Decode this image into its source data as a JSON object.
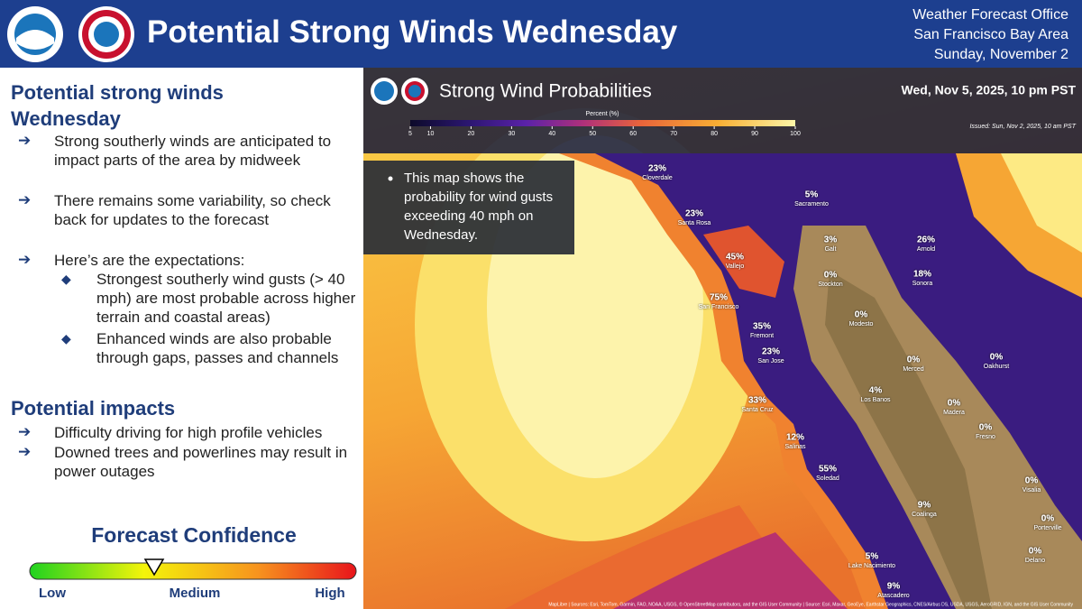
{
  "header": {
    "title": "Potential Strong Winds Wednesday",
    "office": [
      "Weather Forecast Office",
      "San Francisco Bay Area",
      "Sunday, November 2"
    ]
  },
  "summary": {
    "heading": "Potential strong winds Wednesday",
    "bullets": [
      "Strong southerly winds are anticipated to impact parts of the area by midweek",
      "There remains some variability, so check back for updates to the forecast",
      "Here’s are the expectations:"
    ],
    "sub_bullets": [
      "Strongest southerly wind gusts (> 40 mph) are most probable across higher terrain and coastal areas)",
      "Enhanced winds are also probable through gaps, passes and channels"
    ]
  },
  "impacts": {
    "heading": "Potential impacts",
    "bullets": [
      "Difficulty driving for high profile vehicles",
      "Downed trees and powerlines may result in power outages"
    ]
  },
  "confidence": {
    "title": "Forecast Confidence",
    "labels": [
      "Low",
      "Medium",
      "High"
    ]
  },
  "map": {
    "title": "Strong Wind Probabilities",
    "valid": "Wed, Nov 5, 2025, 10 pm PST",
    "legend_title": "Percent (%)",
    "legend_ticks": [
      5,
      10,
      20,
      30,
      40,
      50,
      60,
      70,
      80,
      90,
      100
    ],
    "issued": "Issued: Sun, Nov 2, 2025, 10 am PST",
    "note": "This map shows the probability for wind gusts exceeding 40 mph on Wednesday.",
    "cities": [
      {
        "name": "Cloverdale",
        "label": "23%"
      },
      {
        "name": "Santa Rosa",
        "label": "23%"
      },
      {
        "name": "Sacramento",
        "label": "5%"
      },
      {
        "name": "Galt",
        "label": "3%"
      },
      {
        "name": "Vallejo",
        "label": "45%"
      },
      {
        "name": "Stockton",
        "label": "0%"
      },
      {
        "name": "Arnold",
        "label": "26%"
      },
      {
        "name": "Sonora",
        "label": "18%"
      },
      {
        "name": "San Francisco",
        "label": "75%"
      },
      {
        "name": "Fremont",
        "label": "35%"
      },
      {
        "name": "Modesto",
        "label": "0%"
      },
      {
        "name": "San Jose",
        "label": "23%"
      },
      {
        "name": "Merced",
        "label": "0%"
      },
      {
        "name": "Oakhurst",
        "label": "0%"
      },
      {
        "name": "Los Banos",
        "label": "4%"
      },
      {
        "name": "Santa Cruz",
        "label": "33%"
      },
      {
        "name": "Madera",
        "label": "0%"
      },
      {
        "name": "Fresno",
        "label": "0%"
      },
      {
        "name": "Salinas",
        "label": "12%"
      },
      {
        "name": "Soledad",
        "label": "55%"
      },
      {
        "name": "Coalinga",
        "label": "9%"
      },
      {
        "name": "Visalia",
        "label": "0%"
      },
      {
        "name": "Porterville",
        "label": "0%"
      },
      {
        "name": "Lake Nacimiento",
        "label": "5%"
      },
      {
        "name": "Atascadero",
        "label": "9%"
      },
      {
        "name": "Delano",
        "label": "0%"
      }
    ],
    "attribution": "MapLibre | Sources: Esri, TomTom, Garmin, FAO, NOAA, USGS, © OpenStreetMap contributors, and the GIS User Community | Source: Esri, Maxar, GeoEye, Earthstar Geographics, CNES/Airbus DS, USDA, USGS, AeroGRID, IGN, and the GIS User Community"
  }
}
